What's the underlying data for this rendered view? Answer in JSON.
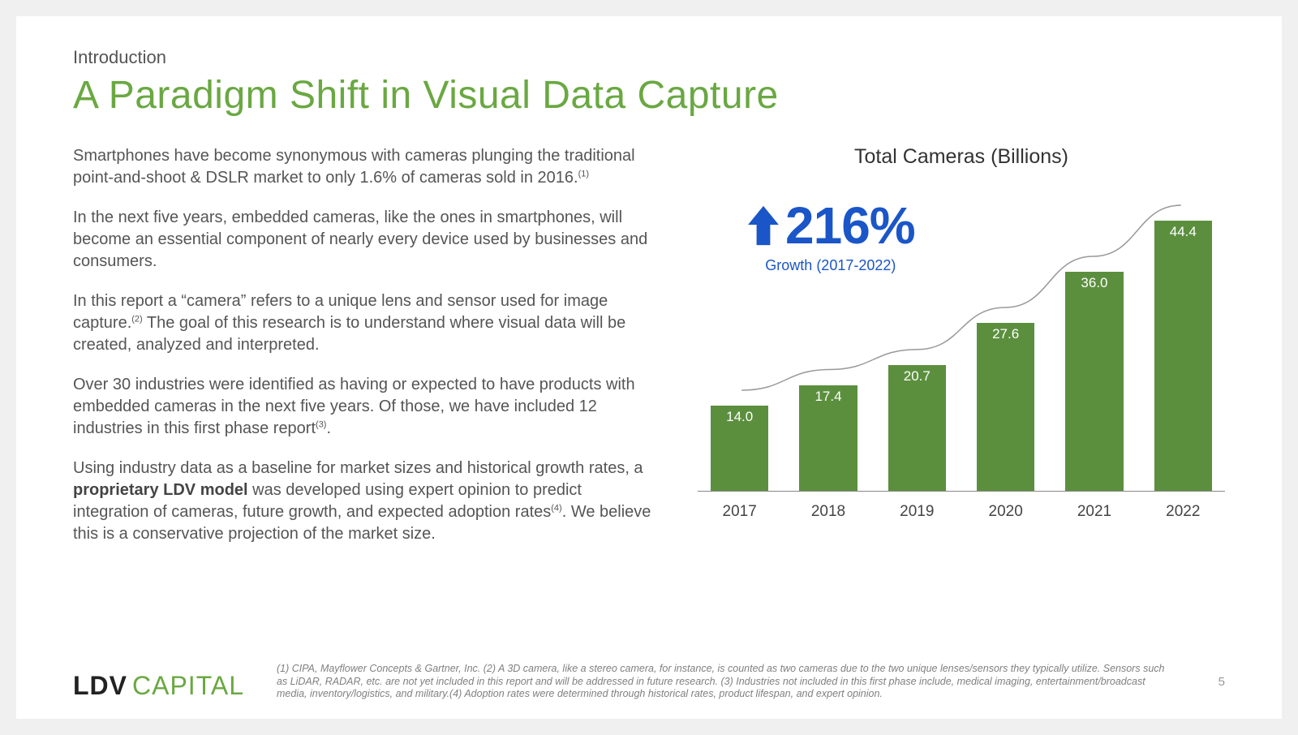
{
  "header": {
    "eyebrow": "Introduction",
    "title": "A Paradigm Shift in Visual Data Capture"
  },
  "body": {
    "p1_a": "Smartphones have become synonymous with cameras plunging the traditional point-and-shoot & DSLR market to only 1.6% of cameras sold in 2016.",
    "p1_sup": "(1)",
    "p2": "In the next five years, embedded cameras, like the ones in smartphones, will become an essential component of nearly every device used by businesses and consumers.",
    "p3_a": "In this report a “camera” refers to a unique lens and sensor used for image capture.",
    "p3_sup": "(2)",
    "p3_b": " The goal of this research is to understand where visual data will be created, analyzed and interpreted.",
    "p4_a": "Over 30 industries were identified as having or expected to have products with embedded cameras in the next five years. Of those, we have included 12 industries in this first phase report",
    "p4_sup": "(3)",
    "p4_b": ".",
    "p5_a": "Using industry data as a baseline for market sizes and historical growth rates, a ",
    "p5_bold": "proprietary LDV model",
    "p5_b": " was developed using expert opinion to predict integration of cameras, future growth, and expected adoption rates",
    "p5_sup": "(4)",
    "p5_c": ". We believe this is a conservative projection of the market size."
  },
  "chart": {
    "title": "Total Cameras (Billions)",
    "growth_value": "216%",
    "growth_caption": "Growth (2017-2022)",
    "growth_color": "#1a56c7",
    "type": "bar",
    "bar_color": "#5b8f3e",
    "value_label_color": "#ffffff",
    "axis_color": "#888888",
    "trend_line_color": "#999999",
    "trend_line_width": 1.5,
    "background_color": "#ffffff",
    "ymax": 48,
    "bar_width_ratio": 0.78,
    "value_fontsize": 17,
    "xlabel_fontsize": 19,
    "categories": [
      "2017",
      "2018",
      "2019",
      "2020",
      "2021",
      "2022"
    ],
    "values": [
      14.0,
      17.4,
      20.7,
      27.6,
      36.0,
      44.4
    ],
    "value_labels": [
      "14.0",
      "17.4",
      "20.7",
      "27.6",
      "36.0",
      "44.4"
    ]
  },
  "footer": {
    "logo_bold": "LDV",
    "logo_light": "CAPITAL",
    "footnotes": "(1) CIPA, Mayflower Concepts & Gartner, Inc. (2) A 3D camera, like a stereo camera, for instance, is counted as two cameras due to the two unique lenses/sensors they typically utilize. Sensors such as LiDAR, RADAR, etc. are not yet included in this report and will be addressed in future research. (3) Industries not included in this first phase include, medical imaging, entertainment/broadcast media, inventory/logistics, and military.(4) Adoption rates were determined through historical rates, product lifespan, and expert opinion.",
    "page": "5"
  }
}
